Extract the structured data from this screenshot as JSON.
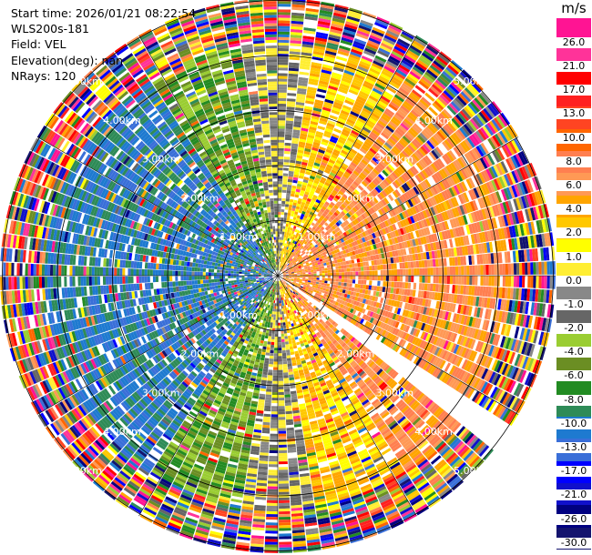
{
  "header": {
    "start_time": "Start time: 2026/01/21 08:22:54",
    "instrument": "WLS200s-181",
    "field": "Field: VEL",
    "elevation": "Elevation(deg): nan",
    "nrays": "NRays: 120"
  },
  "colorbar": {
    "unit": "m/s",
    "ticks": [
      "26.0",
      "21.0",
      "17.0",
      "13.0",
      "10.0",
      "8.0",
      "6.0",
      "4.0",
      "2.0",
      "1.0",
      "0.0",
      "-1.0",
      "-2.0",
      "-4.0",
      "-6.0",
      "-8.0",
      "-10.0",
      "-13.0",
      "-17.0",
      "-21.0",
      "-26.0",
      "-30.0"
    ],
    "colors": [
      "#ff1493",
      "#ff3399",
      "#ff0000",
      "#ff2020",
      "#ff4422",
      "#ff6600",
      "#ff7f50",
      "#ff9955",
      "#ffa500",
      "#ffc800",
      "#ffff00",
      "#ffee33",
      "#888888",
      "#666666",
      "#9acd32",
      "#6b8e23",
      "#228b22",
      "#2e8b57",
      "#1e7ad0",
      "#3a6fd8",
      "#0000ff",
      "#1010cc",
      "#000080",
      "#14146e"
    ]
  },
  "ppi": {
    "range_labels": [
      "1.00km",
      "2.00km",
      "3.00km",
      "4.00km",
      "5.00km"
    ],
    "max_range_km": 5,
    "n_rays": 120,
    "missing_sector_deg": [
      124,
      128
    ]
  }
}
